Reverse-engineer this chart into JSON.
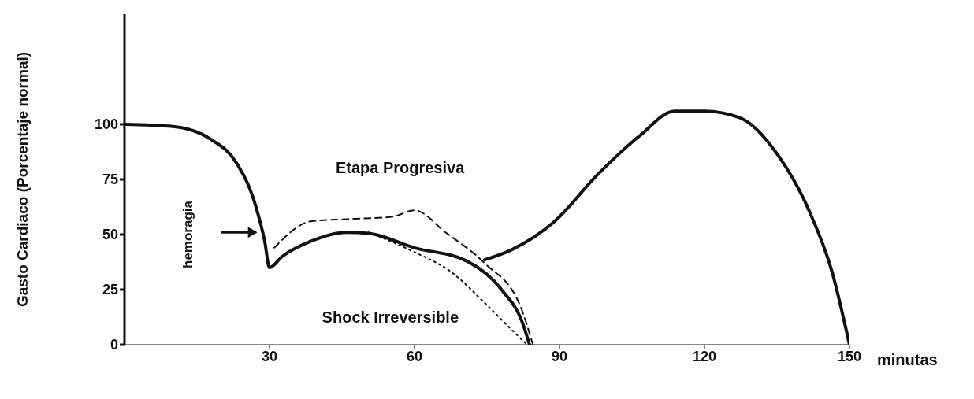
{
  "chart_data": {
    "type": "line",
    "ylabel": "Gasto Cardiaco (Porcentaje normal)",
    "xlabel": "minutas",
    "xlim": [
      0,
      150
    ],
    "xticks": [
      30,
      60,
      90,
      120,
      150
    ],
    "ylim": [
      0,
      150
    ],
    "yticks": [
      0,
      25,
      50,
      75,
      100
    ],
    "marker": "none",
    "series": [
      {
        "color": "#111111",
        "line_style": "solid",
        "x": [
          0,
          10,
          18,
          23,
          27,
          29,
          30,
          32.6,
          38.6,
          46,
          50.5,
          60,
          70.8,
          78,
          82.5,
          83.8
        ],
        "values": [
          100,
          99,
          93,
          83,
          64,
          47,
          35,
          40,
          47,
          51,
          50.5,
          44,
          38,
          25,
          9,
          0
        ]
      },
      {
        "color": "#111111",
        "line_style": "solid",
        "x": [
          74.5,
          80,
          89,
          97.8,
          106.7,
          113.8,
          120,
          127.3,
          135.2,
          141.6,
          146.4,
          150
        ],
        "values": [
          38.5,
          43,
          56,
          77,
          95,
          106,
          106,
          103,
          86,
          61,
          33,
          0
        ]
      },
      {
        "color": "#111111",
        "line_style": "dashed",
        "x": [
          31,
          38.6,
          46,
          55.3,
          60,
          66.4,
          74.5,
          81.8,
          84.5
        ],
        "values": [
          44,
          56,
          57,
          58,
          61,
          51,
          37,
          18,
          0
        ]
      },
      {
        "color": "#111111",
        "line_style": "dotted",
        "x": [
          50.5,
          55,
          60,
          67.6,
          74.5,
          80,
          83.3
        ],
        "values": [
          51,
          47,
          42,
          33,
          19,
          7,
          0
        ]
      }
    ],
    "annotations": [
      "Etapa Progresiva",
      "hemoragia",
      "Shock Irreversible"
    ]
  }
}
